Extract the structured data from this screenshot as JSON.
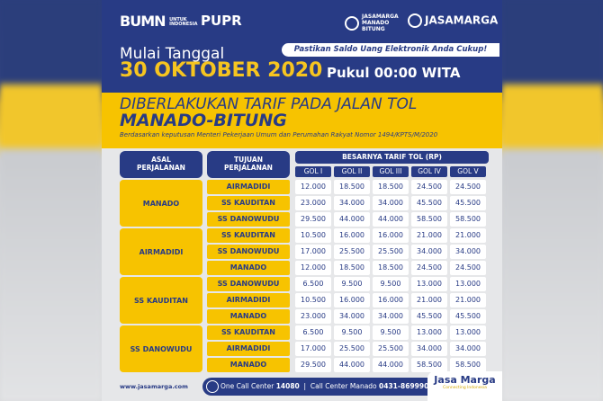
{
  "header": {
    "logos": {
      "bumn": "BUMN",
      "bumn_sub": "UNTUK INDONESIA",
      "pupr": "PUPR",
      "jm_manado": "JASAMARGA MANADO BITUNG",
      "jasamarga": "JASAMARGA"
    },
    "mulai": "Mulai Tanggal",
    "notice": "Pastikan Saldo Uang Elektronik Anda Cukup!",
    "date": "30 OKTOBER 2020",
    "time": "Pukul 00:00 WITA"
  },
  "title": {
    "line1": "DIBERLAKUKAN TARIF PADA JALAN TOL",
    "route": "MANADO-BITUNG",
    "basis": "Berdasarkan keputusan Menteri Pekerjaan Umum dan Perumahan Rakyat Nomor 1494/KPTS/M/2020"
  },
  "table": {
    "h_asal": "ASAL PERJALANAN",
    "h_tujuan": "TUJUAN PERJALANAN",
    "h_tarif": "BESARNYA TARIF TOL (RP)",
    "gol": [
      "GOL I",
      "GOL II",
      "GOL III",
      "GOL IV",
      "GOL V"
    ],
    "groups": [
      {
        "asal": "MANADO",
        "rows": [
          {
            "tujuan": "AIRMADIDI",
            "tarif": [
              "12.000",
              "18.500",
              "18.500",
              "24.500",
              "24.500"
            ]
          },
          {
            "tujuan": "SS KAUDITAN",
            "tarif": [
              "23.000",
              "34.000",
              "34.000",
              "45.500",
              "45.500"
            ]
          },
          {
            "tujuan": "SS DANOWUDU",
            "tarif": [
              "29.500",
              "44.000",
              "44.000",
              "58.500",
              "58.500"
            ]
          }
        ]
      },
      {
        "asal": "AIRMADIDI",
        "rows": [
          {
            "tujuan": "SS KAUDITAN",
            "tarif": [
              "10.500",
              "16.000",
              "16.000",
              "21.000",
              "21.000"
            ]
          },
          {
            "tujuan": "SS DANOWUDU",
            "tarif": [
              "17.000",
              "25.500",
              "25.500",
              "34.000",
              "34.000"
            ]
          },
          {
            "tujuan": "MANADO",
            "tarif": [
              "12.000",
              "18.500",
              "18.500",
              "24.500",
              "24.500"
            ]
          }
        ]
      },
      {
        "asal": "SS KAUDITAN",
        "rows": [
          {
            "tujuan": "SS DANOWUDU",
            "tarif": [
              "6.500",
              "9.500",
              "9.500",
              "13.000",
              "13.000"
            ]
          },
          {
            "tujuan": "AIRMADIDI",
            "tarif": [
              "10.500",
              "16.000",
              "16.000",
              "21.000",
              "21.000"
            ]
          },
          {
            "tujuan": "MANADO",
            "tarif": [
              "23.000",
              "34.000",
              "34.000",
              "45.500",
              "45.500"
            ]
          }
        ]
      },
      {
        "asal": "SS DANOWUDU",
        "rows": [
          {
            "tujuan": "SS KAUDITAN",
            "tarif": [
              "6.500",
              "9.500",
              "9.500",
              "13.000",
              "13.000"
            ]
          },
          {
            "tujuan": "AIRMADIDI",
            "tarif": [
              "17.000",
              "25.500",
              "25.500",
              "34.000",
              "34.000"
            ]
          },
          {
            "tujuan": "MANADO",
            "tarif": [
              "29.500",
              "44.000",
              "44.000",
              "58.500",
              "58.500"
            ]
          }
        ]
      }
    ]
  },
  "footer": {
    "website": "www.jasamarga.com",
    "cc1_label": "One Call Center",
    "cc1_num": "14080",
    "cc2_label": "Call Center Manado",
    "cc2_num": "0431-869990",
    "brand": "Jasa Marga",
    "tagline": "Connecting Indonesia"
  },
  "colors": {
    "navy": "#283b85",
    "yellow": "#f7c300"
  }
}
